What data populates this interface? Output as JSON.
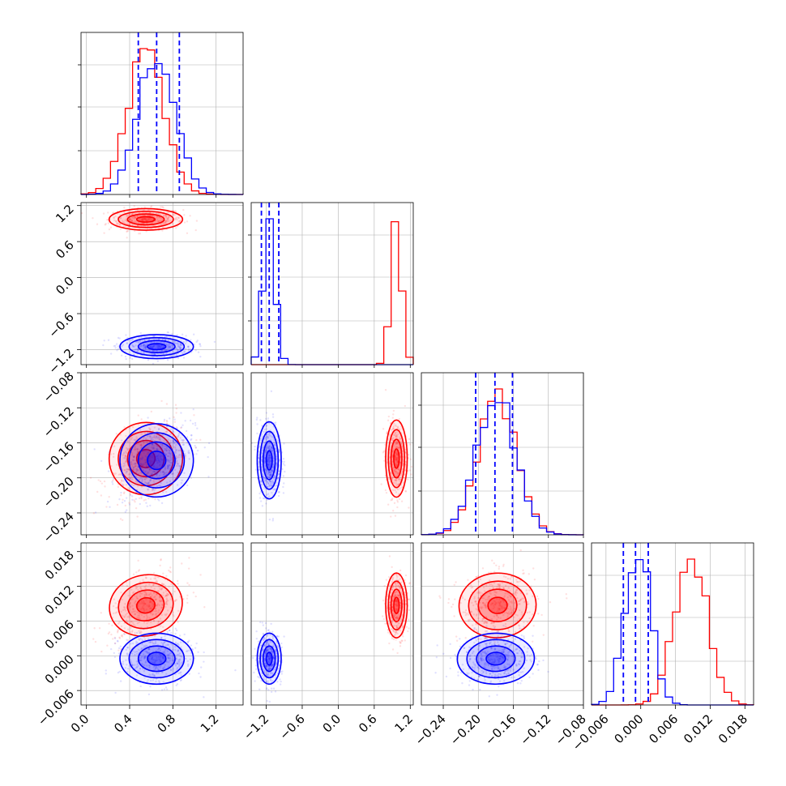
{
  "colors": {
    "series_a": "#ff0000",
    "series_b": "#0000ff",
    "grid": "#b0b0b0",
    "frame": "#000000"
  },
  "chart_data": {
    "type": "corner",
    "grid": true,
    "params": [
      {
        "xticks": [
          "0.0",
          "0.4",
          "0.8",
          "1.2"
        ],
        "range": [
          -0.05,
          1.45
        ]
      },
      {
        "xticks": [
          "−1.2",
          "−0.6",
          "0.0",
          "0.6",
          "1.2"
        ],
        "yticks": [
          "1.2",
          "0.6",
          "0.0",
          "−0.6",
          "−1.2"
        ],
        "range": [
          -1.45,
          1.25
        ]
      },
      {
        "xticks": [
          "−0.24",
          "−0.20",
          "−0.16",
          "−0.12",
          "−0.08"
        ],
        "yticks": [
          "−0.08",
          "−0.12",
          "−0.16",
          "−0.20",
          "−0.24"
        ],
        "range": [
          -0.265,
          -0.08
        ]
      },
      {
        "xticks": [
          "−0.006",
          "0.000",
          "0.006",
          "0.012",
          "0.018"
        ],
        "yticks": [
          "0.018",
          "0.012",
          "0.006",
          "0.000",
          "−0.006"
        ],
        "range": [
          -0.0085,
          0.0195
        ]
      }
    ],
    "series": [
      {
        "color": "red",
        "mean": [
          0.55,
          0.97,
          -0.178,
          0.0087
        ],
        "sd": [
          0.17,
          0.09,
          0.022,
          0.0028
        ],
        "corr": {
          "0-2": 0.45,
          "0-3": 0.45,
          "2-3": 0.1
        }
      },
      {
        "color": "blue",
        "mean": [
          0.65,
          -1.15,
          -0.18,
          -0.0005
        ],
        "sd": [
          0.17,
          0.1,
          0.022,
          0.0022
        ],
        "corr": {
          "0-2": 0.4,
          "2-3": 0.05
        }
      }
    ],
    "quantile_lines": [
      [
        0.48,
        0.65,
        0.86
      ],
      [
        -1.28,
        -1.15,
        -0.99
      ],
      [
        -0.203,
        -0.181,
        -0.161
      ],
      [
        -0.003,
        -0.0009,
        0.0013
      ]
    ]
  }
}
